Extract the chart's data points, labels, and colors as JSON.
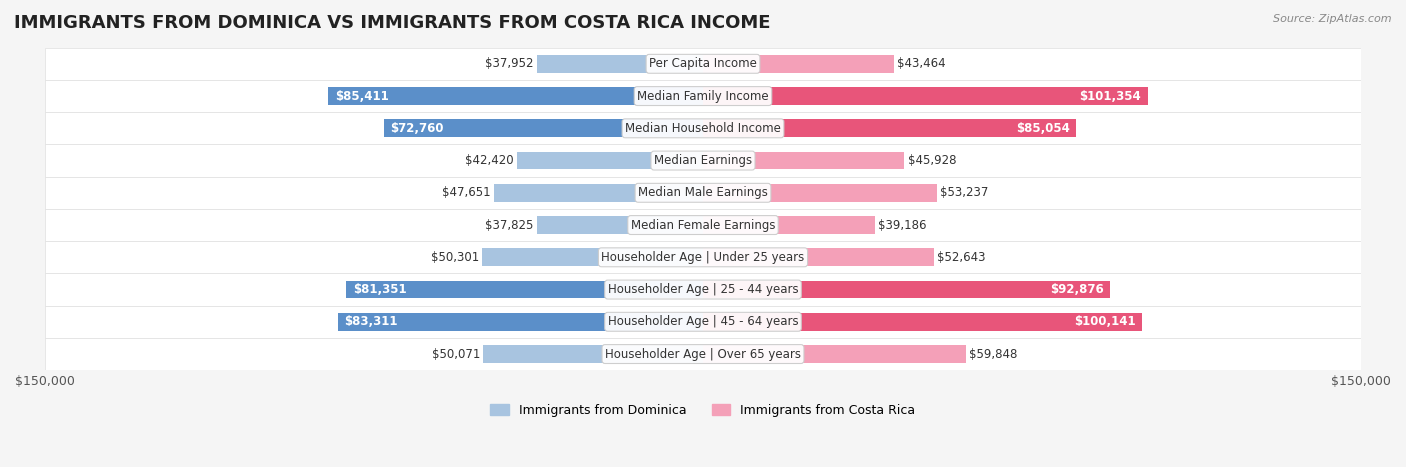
{
  "title": "IMMIGRANTS FROM DOMINICA VS IMMIGRANTS FROM COSTA RICA INCOME",
  "source": "Source: ZipAtlas.com",
  "categories": [
    "Per Capita Income",
    "Median Family Income",
    "Median Household Income",
    "Median Earnings",
    "Median Male Earnings",
    "Median Female Earnings",
    "Householder Age | Under 25 years",
    "Householder Age | 25 - 44 years",
    "Householder Age | 45 - 64 years",
    "Householder Age | Over 65 years"
  ],
  "dominica_values": [
    37952,
    85411,
    72760,
    42420,
    47651,
    37825,
    50301,
    81351,
    83311,
    50071
  ],
  "costa_rica_values": [
    43464,
    101354,
    85054,
    45928,
    53237,
    39186,
    52643,
    92876,
    100141,
    59848
  ],
  "dominica_color_light": "#a8c4e0",
  "dominica_color_dark": "#5b8fc9",
  "costa_rica_color_light": "#f4a0b8",
  "costa_rica_color_dark": "#e8557a",
  "bar_height": 0.55,
  "max_value": 150000,
  "bg_color": "#f5f5f5",
  "row_bg_color": "#ffffff",
  "label_fontsize": 8.5,
  "value_fontsize": 8.5,
  "title_fontsize": 13
}
